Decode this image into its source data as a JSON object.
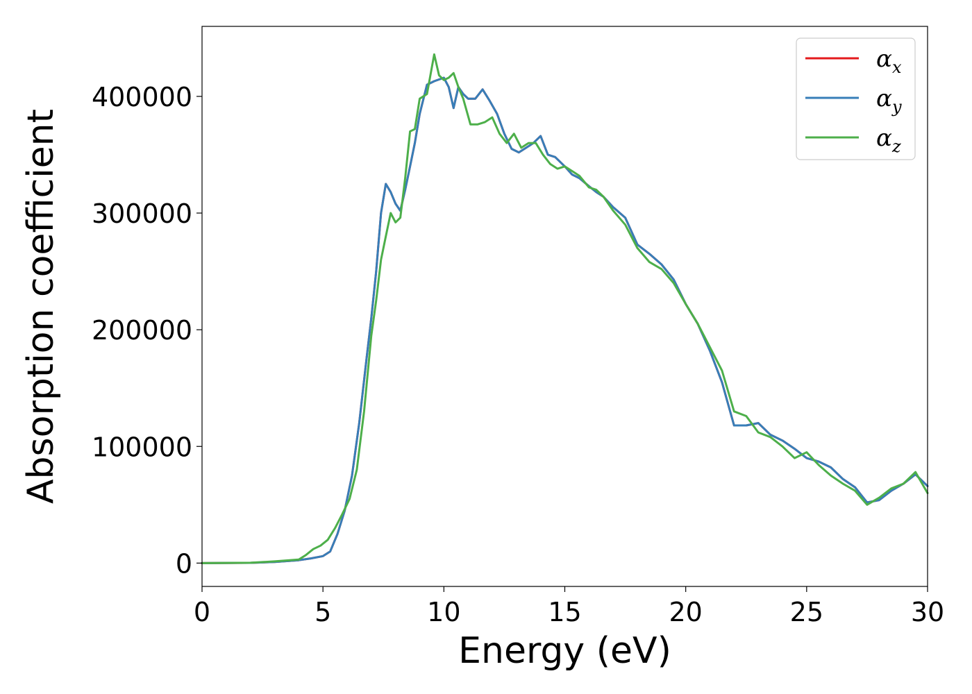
{
  "chart_data": {
    "type": "line",
    "title": "",
    "xlabel": "Energy (eV)",
    "ylabel": "Absorption coefficient",
    "xlim": [
      0,
      30
    ],
    "ylim": [
      -20000,
      460000
    ],
    "xticks": [
      "0",
      "5",
      "10",
      "15",
      "20",
      "25",
      "30"
    ],
    "yticks": [
      "0",
      "100000",
      "200000",
      "300000",
      "400000"
    ],
    "grid": false,
    "legend_position": "top-right",
    "series": [
      {
        "name": "α_x",
        "legend_base": "α",
        "legend_sub": "x",
        "color": "#e41a1c",
        "x": [
          0,
          2,
          3,
          4,
          4.5,
          5,
          5.3,
          5.6,
          5.9,
          6.2,
          6.5,
          6.8,
          7.0,
          7.2,
          7.4,
          7.6,
          7.8,
          8.0,
          8.2,
          8.4,
          8.6,
          8.8,
          9.0,
          9.3,
          9.6,
          10.0,
          10.2,
          10.4,
          10.6,
          10.8,
          11.0,
          11.3,
          11.6,
          11.9,
          12.2,
          12.5,
          12.8,
          13.1,
          13.4,
          13.7,
          14.0,
          14.3,
          14.6,
          15.0,
          15.3,
          15.6,
          16.0,
          16.3,
          16.6,
          17.0,
          17.5,
          18.0,
          18.5,
          19.0,
          19.5,
          20.0,
          20.5,
          21.0,
          21.5,
          22.0,
          22.5,
          23.0,
          23.5,
          24.0,
          24.5,
          25.0,
          25.5,
          26.0,
          26.5,
          27.0,
          27.5,
          28.0,
          28.5,
          29.0,
          29.5,
          30.0
        ],
        "y": [
          0,
          200,
          1000,
          2500,
          4000,
          6000,
          10000,
          25000,
          45000,
          75000,
          120000,
          175000,
          210000,
          250000,
          300000,
          325000,
          318000,
          308000,
          302000,
          320000,
          340000,
          360000,
          385000,
          410000,
          413000,
          416000,
          408000,
          390000,
          408000,
          402000,
          398000,
          398000,
          406000,
          396000,
          385000,
          368000,
          355000,
          352000,
          356000,
          360000,
          366000,
          350000,
          348000,
          340000,
          333000,
          330000,
          323000,
          318000,
          314000,
          305000,
          296000,
          273000,
          265000,
          256000,
          243000,
          222000,
          205000,
          182000,
          155000,
          118000,
          118000,
          120000,
          110000,
          105000,
          98000,
          90000,
          87000,
          82000,
          72000,
          65000,
          52000,
          54000,
          62000,
          68000,
          76000,
          66000
        ]
      },
      {
        "name": "α_y",
        "legend_base": "α",
        "legend_sub": "y",
        "color": "#377eb8",
        "x": [
          0,
          2,
          3,
          4,
          4.5,
          5,
          5.3,
          5.6,
          5.9,
          6.2,
          6.5,
          6.8,
          7.0,
          7.2,
          7.4,
          7.6,
          7.8,
          8.0,
          8.2,
          8.4,
          8.6,
          8.8,
          9.0,
          9.3,
          9.6,
          10.0,
          10.2,
          10.4,
          10.6,
          10.8,
          11.0,
          11.3,
          11.6,
          11.9,
          12.2,
          12.5,
          12.8,
          13.1,
          13.4,
          13.7,
          14.0,
          14.3,
          14.6,
          15.0,
          15.3,
          15.6,
          16.0,
          16.3,
          16.6,
          17.0,
          17.5,
          18.0,
          18.5,
          19.0,
          19.5,
          20.0,
          20.5,
          21.0,
          21.5,
          22.0,
          22.5,
          23.0,
          23.5,
          24.0,
          24.5,
          25.0,
          25.5,
          26.0,
          26.5,
          27.0,
          27.5,
          28.0,
          28.5,
          29.0,
          29.5,
          30.0
        ],
        "y": [
          0,
          200,
          1000,
          2500,
          4000,
          6000,
          10000,
          25000,
          45000,
          75000,
          120000,
          175000,
          210000,
          250000,
          300000,
          325000,
          318000,
          308000,
          302000,
          320000,
          340000,
          360000,
          385000,
          410000,
          413000,
          416000,
          408000,
          390000,
          408000,
          402000,
          398000,
          398000,
          406000,
          396000,
          385000,
          368000,
          355000,
          352000,
          356000,
          360000,
          366000,
          350000,
          348000,
          340000,
          333000,
          330000,
          323000,
          318000,
          314000,
          305000,
          296000,
          273000,
          265000,
          256000,
          243000,
          222000,
          205000,
          182000,
          155000,
          118000,
          118000,
          120000,
          110000,
          105000,
          98000,
          90000,
          87000,
          82000,
          72000,
          65000,
          52000,
          54000,
          62000,
          68000,
          76000,
          66000
        ]
      },
      {
        "name": "α_z",
        "legend_base": "α",
        "legend_sub": "z",
        "color": "#4daf4a",
        "x": [
          0,
          2,
          3,
          4,
          4.3,
          4.6,
          4.9,
          5.2,
          5.5,
          5.8,
          6.1,
          6.4,
          6.7,
          7.0,
          7.2,
          7.4,
          7.6,
          7.8,
          8.0,
          8.2,
          8.4,
          8.6,
          8.8,
          9.0,
          9.3,
          9.6,
          9.8,
          10.0,
          10.2,
          10.4,
          10.6,
          10.8,
          11.1,
          11.4,
          11.7,
          12.0,
          12.3,
          12.6,
          12.9,
          13.2,
          13.5,
          13.8,
          14.1,
          14.4,
          14.7,
          15.0,
          15.3,
          15.6,
          16.0,
          16.3,
          16.6,
          17.0,
          17.5,
          18.0,
          18.5,
          19.0,
          19.5,
          20.0,
          20.5,
          21.0,
          21.5,
          22.0,
          22.5,
          23.0,
          23.5,
          24.0,
          24.5,
          25.0,
          25.5,
          26.0,
          26.5,
          27.0,
          27.5,
          28.0,
          28.5,
          29.0,
          29.5,
          30.0
        ],
        "y": [
          0,
          300,
          1500,
          3000,
          7000,
          12000,
          15000,
          20000,
          30000,
          42000,
          55000,
          80000,
          130000,
          195000,
          225000,
          260000,
          280000,
          300000,
          292000,
          296000,
          330000,
          370000,
          372000,
          398000,
          402000,
          436000,
          418000,
          414000,
          416000,
          420000,
          408000,
          398000,
          376000,
          376000,
          378000,
          382000,
          368000,
          360000,
          368000,
          356000,
          360000,
          360000,
          350000,
          342000,
          338000,
          340000,
          336000,
          332000,
          322000,
          320000,
          314000,
          302000,
          290000,
          270000,
          258000,
          252000,
          240000,
          222000,
          205000,
          185000,
          165000,
          130000,
          126000,
          112000,
          108000,
          100000,
          90000,
          95000,
          84000,
          75000,
          68000,
          62000,
          50000,
          56000,
          64000,
          68000,
          78000,
          60000
        ]
      }
    ]
  }
}
